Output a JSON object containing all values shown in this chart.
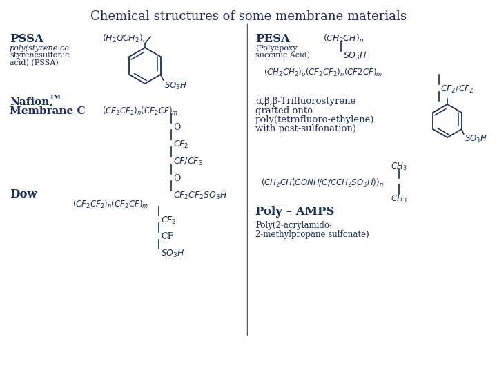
{
  "title": "Chemical structures of some membrane materials",
  "title_color": "#1a2e5a",
  "title_fontsize": 13,
  "bg_color": "#ffffff",
  "text_color": "#1a2e5a",
  "labels": {
    "PSSA_bold": "PSSA",
    "PSSA_sub1": "poly(styrene-co-",
    "PSSA_sub2": "styrenesulfonic",
    "PSSA_sub3": "acid) (PSSA)",
    "nafion_line1": "Nafion,",
    "nafion_TM": "TM",
    "nafion_line2": "Membrane C",
    "dow": "Dow",
    "PESA_bold": "PESA",
    "PESA_sub1": "(Polyepoxy-",
    "PESA_sub2": "succinic Acid)",
    "trifluoro_line1": "α,β,β-Trifluorostyrene",
    "trifluoro_line2": "grafted onto",
    "trifluoro_line3": "poly(tetrafluoro-ethylene)",
    "trifluoro_line4": "with post-sulfonation)",
    "poly_amps_bold": "Poly – AMPS",
    "poly_amps_sub1": "Poly(2-acrylamido-",
    "poly_amps_sub2": "2-methylpropane sulfonate)"
  }
}
